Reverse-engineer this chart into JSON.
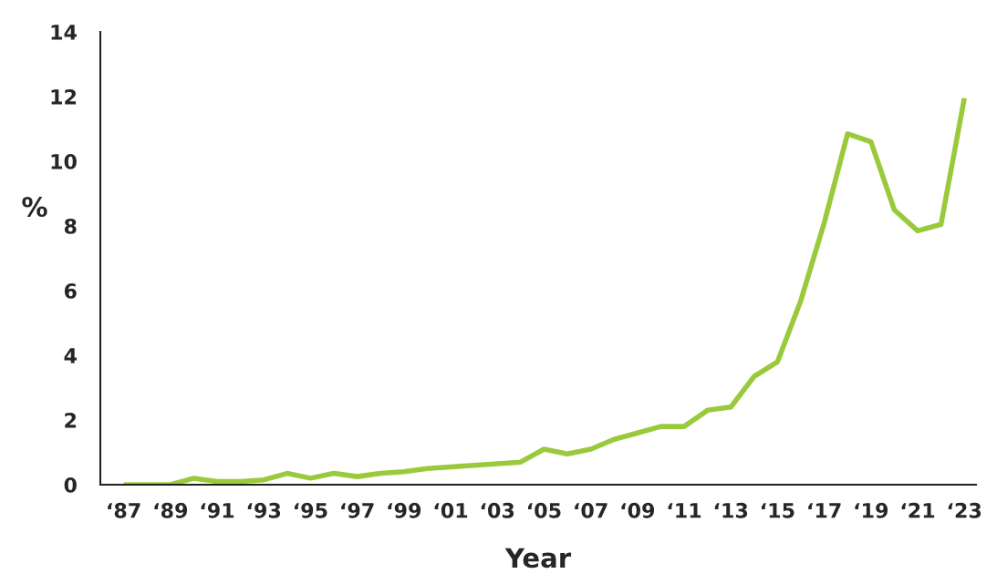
{
  "chart_data": {
    "type": "line",
    "xlabel": "Year",
    "ylabel": "%",
    "categories": [
      "‘87",
      null,
      "‘89",
      null,
      "‘91",
      null,
      "‘93",
      null,
      "‘95",
      null,
      "‘97",
      null,
      "‘99",
      null,
      "‘01",
      null,
      "‘03",
      null,
      "‘05",
      null,
      "‘07",
      null,
      "‘09",
      null,
      "‘11",
      null,
      "‘13",
      null,
      "‘15",
      null,
      "‘17",
      null,
      "‘19",
      null,
      "‘21",
      null,
      "‘23"
    ],
    "series": [
      {
        "color": "#9aca3c",
        "values": [
          0,
          0,
          0,
          0.2,
          0.1,
          0.1,
          0.15,
          0.35,
          0.2,
          0.35,
          0.25,
          0.35,
          0.4,
          0.5,
          0.55,
          0.6,
          0.65,
          0.7,
          1.1,
          0.95,
          1.1,
          1.4,
          1.6,
          1.8,
          1.8,
          2.3,
          2.4,
          3.35,
          3.8,
          5.7,
          8.1,
          10.85,
          10.6,
          8.5,
          7.85,
          8.05,
          11.95
        ]
      }
    ],
    "ylim": [
      0,
      14
    ],
    "yticks": [
      0,
      2,
      4,
      6,
      8,
      10,
      12,
      14
    ],
    "grid": false,
    "marker": "none",
    "line_style": "solid"
  }
}
